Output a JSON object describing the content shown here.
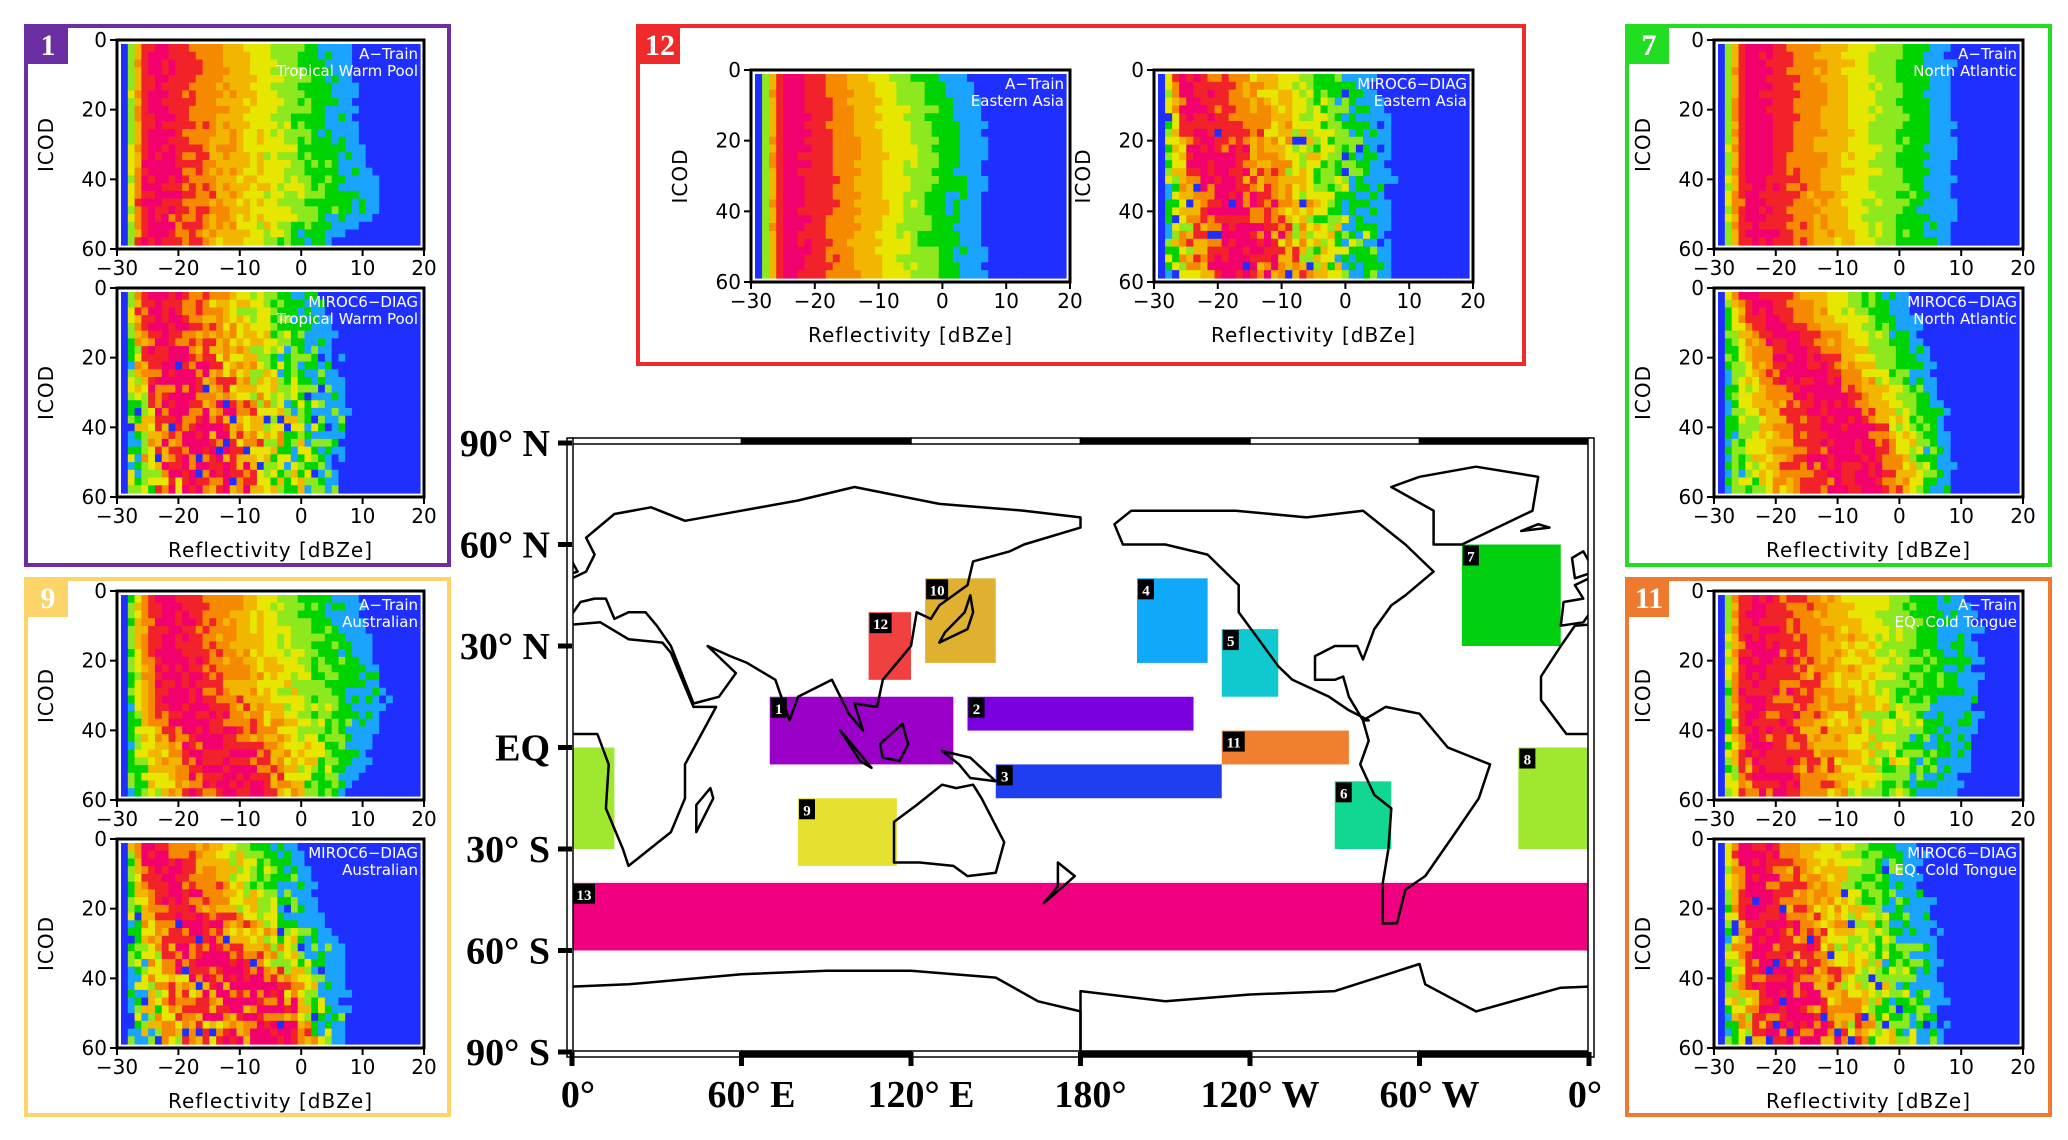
{
  "panels": [
    {
      "number": "1",
      "color": "#6b2fa3"
    },
    {
      "number": "12",
      "color": "#ee2a2a"
    },
    {
      "number": "7",
      "color": "#22dd22"
    },
    {
      "number": "9",
      "color": "#fcd46a"
    },
    {
      "number": "11",
      "color": "#ee7a30"
    }
  ],
  "colorscale": [
    "#1f2fff",
    "#1aa3ff",
    "#00d400",
    "#8ee81e",
    "#e6e600",
    "#f2b600",
    "#f58a00",
    "#f2222a",
    "#f2006e"
  ],
  "chart_data": [
    {
      "id": "p1a",
      "type": "heatmap",
      "panel": "1",
      "source": "A−Train",
      "region": "Tropical Warm Pool",
      "xlabel": "",
      "ylabel": "ICOD",
      "xlim": [
        -30,
        20
      ],
      "ylim": [
        60,
        0
      ],
      "xticks": [
        "−30",
        "−20",
        "−10",
        "0",
        "10",
        "20"
      ],
      "yticks": [
        "0",
        "20",
        "40",
        "60"
      ],
      "icod": [
        0,
        10,
        20,
        30,
        40,
        50,
        60
      ],
      "peak_dbz": [
        -24,
        -24,
        -24,
        -24,
        -25,
        -25,
        -25
      ],
      "edge_dbz": [
        7,
        8,
        8,
        9,
        11,
        12,
        3
      ],
      "noise": 0.25
    },
    {
      "id": "p1b",
      "type": "heatmap",
      "panel": "1",
      "source": "MIROC6−DIAG",
      "region": "Tropical Warm Pool",
      "xlabel": "Reflectivity [dBZe]",
      "ylabel": "ICOD",
      "xlim": [
        -30,
        20
      ],
      "ylim": [
        60,
        0
      ],
      "xticks": [
        "−30",
        "−20",
        "−10",
        "0",
        "10",
        "20"
      ],
      "yticks": [
        "0",
        "20",
        "40",
        "60"
      ],
      "icod": [
        0,
        10,
        20,
        30,
        40,
        50,
        60
      ],
      "peak_dbz": [
        -25,
        -24,
        -22,
        -20,
        -18,
        -15,
        -12
      ],
      "edge_dbz": [
        2,
        4,
        5,
        7,
        7,
        5,
        6
      ],
      "noise": 0.7
    },
    {
      "id": "p12a",
      "type": "heatmap",
      "panel": "12",
      "source": "A−Train",
      "region": "Eastern Asia",
      "xlabel": "Reflectivity [dBZe]",
      "ylabel": "ICOD",
      "xlim": [
        -30,
        20
      ],
      "ylim": [
        60,
        0
      ],
      "xticks": [
        "−30",
        "−20",
        "−10",
        "0",
        "10",
        "20"
      ],
      "yticks": [
        "0",
        "20",
        "40",
        "60"
      ],
      "icod": [
        0,
        10,
        20,
        30,
        40,
        50,
        60
      ],
      "peak_dbz": [
        -24,
        -24,
        -24,
        -24,
        -24,
        -24,
        -24
      ],
      "edge_dbz": [
        2,
        5,
        6,
        6,
        5,
        5,
        6
      ],
      "noise": 0.12
    },
    {
      "id": "p12b",
      "type": "heatmap",
      "panel": "12",
      "source": "MIROC6−DIAG",
      "region": "Eastern Asia",
      "xlabel": "Reflectivity [dBZe]",
      "ylabel": "ICOD",
      "xlim": [
        -30,
        20
      ],
      "ylim": [
        60,
        0
      ],
      "xticks": [
        "−30",
        "−20",
        "−10",
        "0",
        "10",
        "20"
      ],
      "yticks": [
        "0",
        "20",
        "40",
        "60"
      ],
      "icod": [
        0,
        10,
        20,
        30,
        40,
        50,
        60
      ],
      "peak_dbz": [
        -26,
        -24,
        -22,
        -20,
        -18,
        -17,
        -16
      ],
      "edge_dbz": [
        3,
        5,
        6,
        6,
        6,
        6,
        6
      ],
      "noise": 0.6
    },
    {
      "id": "p7a",
      "type": "heatmap",
      "panel": "7",
      "source": "A−Train",
      "region": "North Atlantic",
      "xlabel": "",
      "ylabel": "ICOD",
      "xlim": [
        -30,
        20
      ],
      "ylim": [
        60,
        0
      ],
      "xticks": [
        "−30",
        "−20",
        "−10",
        "0",
        "10",
        "20"
      ],
      "yticks": [
        "0",
        "20",
        "40",
        "60"
      ],
      "icod": [
        0,
        10,
        20,
        30,
        40,
        50,
        60
      ],
      "peak_dbz": [
        -24,
        -24,
        -24,
        -24,
        -24,
        -24,
        -24
      ],
      "edge_dbz": [
        7,
        8,
        8,
        8,
        8,
        8,
        8
      ],
      "noise": 0.15
    },
    {
      "id": "p7b",
      "type": "heatmap",
      "panel": "7",
      "source": "MIROC6−DIAG",
      "region": "North Atlantic",
      "xlabel": "Reflectivity [dBZe]",
      "ylabel": "ICOD",
      "xlim": [
        -30,
        20
      ],
      "ylim": [
        60,
        0
      ],
      "xticks": [
        "−30",
        "−20",
        "−10",
        "0",
        "10",
        "20"
      ],
      "yticks": [
        "0",
        "20",
        "40",
        "60"
      ],
      "icod": [
        0,
        10,
        20,
        30,
        40,
        50,
        60
      ],
      "peak_dbz": [
        -25,
        -20,
        -15,
        -11,
        -7,
        -5,
        -3
      ],
      "edge_dbz": [
        0,
        2,
        4,
        6,
        7,
        8,
        8
      ],
      "noise": 0.35
    },
    {
      "id": "p9a",
      "type": "heatmap",
      "panel": "9",
      "source": "A−Train",
      "region": "Australian",
      "xlabel": "",
      "ylabel": "ICOD",
      "xlim": [
        -30,
        20
      ],
      "ylim": [
        60,
        0
      ],
      "xticks": [
        "−30",
        "−20",
        "−10",
        "0",
        "10",
        "20"
      ],
      "yticks": [
        "0",
        "20",
        "40",
        "60"
      ],
      "icod": [
        0,
        10,
        20,
        30,
        40,
        50,
        60
      ],
      "peak_dbz": [
        -22,
        -22,
        -22,
        -20,
        -15,
        -10,
        -8
      ],
      "edge_dbz": [
        8,
        10,
        12,
        13,
        12,
        10,
        6
      ],
      "noise": 0.35
    },
    {
      "id": "p9b",
      "type": "heatmap",
      "panel": "9",
      "source": "MIROC6−DIAG",
      "region": "Australian",
      "xlabel": "Reflectivity [dBZe]",
      "ylabel": "ICOD",
      "xlim": [
        -30,
        20
      ],
      "ylim": [
        60,
        0
      ],
      "xticks": [
        "−30",
        "−20",
        "−10",
        "0",
        "10",
        "20"
      ],
      "yticks": [
        "0",
        "20",
        "40",
        "60"
      ],
      "icod": [
        0,
        10,
        20,
        30,
        40,
        50,
        60
      ],
      "peak_dbz": [
        -26,
        -22,
        -20,
        -15,
        -8,
        -3,
        -2
      ],
      "edge_dbz": [
        -1,
        1,
        2,
        5,
        6,
        6,
        6
      ],
      "noise": 0.7
    },
    {
      "id": "p11a",
      "type": "heatmap",
      "panel": "11",
      "source": "A−Train",
      "region": "EQ. Cold Tongue",
      "xlabel": "",
      "ylabel": "ICOD",
      "xlim": [
        -30,
        20
      ],
      "ylim": [
        60,
        0
      ],
      "xticks": [
        "−30",
        "−20",
        "−10",
        "0",
        "10",
        "20"
      ],
      "yticks": [
        "0",
        "20",
        "40",
        "60"
      ],
      "icod": [
        0,
        10,
        20,
        30,
        40,
        50,
        60
      ],
      "peak_dbz": [
        -24,
        -24,
        -24,
        -24,
        -24,
        -22,
        -20
      ],
      "edge_dbz": [
        10,
        12,
        12,
        12,
        12,
        10,
        8
      ],
      "noise": 0.4
    },
    {
      "id": "p11b",
      "type": "heatmap",
      "panel": "11",
      "source": "MIROC6−DIAG",
      "region": "EQ. Cold Tongue",
      "xlabel": "Reflectivity [dBZe]",
      "ylabel": "ICOD",
      "xlim": [
        -30,
        20
      ],
      "ylim": [
        60,
        0
      ],
      "xticks": [
        "−30",
        "−20",
        "−10",
        "0",
        "10",
        "20"
      ],
      "yticks": [
        "0",
        "20",
        "40",
        "60"
      ],
      "icod": [
        0,
        10,
        20,
        30,
        40,
        50,
        60
      ],
      "peak_dbz": [
        -25,
        -24,
        -23,
        -22,
        -20,
        -18,
        -16
      ],
      "edge_dbz": [
        2,
        3,
        4,
        6,
        6,
        6,
        6
      ],
      "noise": 0.6
    },
    {
      "id": "map",
      "type": "map",
      "lat_labels": [
        "90° N",
        "60° N",
        "30° N",
        "EQ",
        "30° S",
        "60° S",
        "90° S"
      ],
      "lat_values": [
        90,
        60,
        30,
        0,
        -30,
        -60,
        -90
      ],
      "lon_labels": [
        "0°",
        "60° E",
        "120° E",
        "180°",
        "120° W",
        "60° W",
        "0°"
      ],
      "lon_values": [
        0,
        60,
        120,
        180,
        240,
        300,
        360
      ],
      "regions": [
        {
          "id": "1",
          "lon": [
            70,
            135
          ],
          "lat": [
            -5,
            15
          ],
          "color": "#9a00c8"
        },
        {
          "id": "2",
          "lon": [
            140,
            220
          ],
          "lat": [
            5,
            15
          ],
          "color": "#7a00e0"
        },
        {
          "id": "3",
          "lon": [
            150,
            230
          ],
          "lat": [
            -15,
            -5
          ],
          "color": "#1e3ef0"
        },
        {
          "id": "4",
          "lon": [
            200,
            225
          ],
          "lat": [
            25,
            50
          ],
          "color": "#10a8f8"
        },
        {
          "id": "5",
          "lon": [
            230,
            250
          ],
          "lat": [
            15,
            35
          ],
          "color": "#10c8d0"
        },
        {
          "id": "6",
          "lon": [
            270,
            290
          ],
          "lat": [
            -30,
            -10
          ],
          "color": "#10d890"
        },
        {
          "id": "7",
          "lon": [
            315,
            350
          ],
          "lat": [
            30,
            60
          ],
          "color": "#00d010"
        },
        {
          "id": "8",
          "lon": [
            335,
            375
          ],
          "lat": [
            -30,
            0
          ],
          "color": "#a0e830"
        },
        {
          "id": "9",
          "lon": [
            80,
            115
          ],
          "lat": [
            -35,
            -15
          ],
          "color": "#e6e030"
        },
        {
          "id": "10",
          "lon": [
            125,
            150
          ],
          "lat": [
            25,
            50
          ],
          "color": "#e0b030"
        },
        {
          "id": "11",
          "lon": [
            230,
            275
          ],
          "lat": [
            -5,
            5
          ],
          "color": "#f08030"
        },
        {
          "id": "12",
          "lon": [
            105,
            120
          ],
          "lat": [
            20,
            40
          ],
          "color": "#f04040"
        },
        {
          "id": "13",
          "lon": [
            0,
            360
          ],
          "lat": [
            -60,
            -40
          ],
          "color": "#f00080"
        }
      ]
    }
  ]
}
